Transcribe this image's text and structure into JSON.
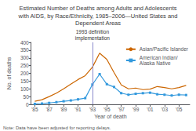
{
  "chart_data": {
    "type": "line",
    "title": "Estimated Number of Deaths among Adults and Adolescents\nwith AIDS, by Race/Ethnicity, 1985–2006—United States and\nDependent Areas",
    "xlabel": "Year of death",
    "ylabel": "No. of deaths",
    "x": [
      1985,
      1986,
      1987,
      1988,
      1989,
      1990,
      1991,
      1992,
      1993,
      1994,
      1995,
      1996,
      1997,
      1998,
      1999,
      2000,
      2001,
      2002,
      2003,
      2004,
      2005,
      2006
    ],
    "series": [
      {
        "name": "Asian/Pacific Islander",
        "color": "#cc6600",
        "marker": "none",
        "values": [
          20,
          30,
          50,
          72,
          100,
          130,
          160,
          185,
          240,
          330,
          290,
          205,
          125,
          100,
          105,
          95,
          98,
          115,
          108,
          100,
          108,
          122
        ]
      },
      {
        "name": "American Indian/\nAlaska Native",
        "color": "#3399dd",
        "marker": "square",
        "values": [
          3,
          5,
          9,
          14,
          20,
          25,
          32,
          40,
          128,
          195,
          130,
          112,
          72,
          62,
          68,
          72,
          75,
          65,
          62,
          57,
          62,
          60
        ]
      }
    ],
    "xlim": [
      1984.5,
      2006.5
    ],
    "xticks": [
      {
        "value": 1985,
        "label": "'85"
      },
      {
        "value": 1987,
        "label": "'87"
      },
      {
        "value": 1989,
        "label": "'89"
      },
      {
        "value": 1991,
        "label": "'91"
      },
      {
        "value": 1993,
        "label": "'93"
      },
      {
        "value": 1995,
        "label": "'95"
      },
      {
        "value": 1997,
        "label": "'97"
      },
      {
        "value": 1999,
        "label": "'99"
      },
      {
        "value": 2001,
        "label": "'01"
      },
      {
        "value": 2003,
        "label": "'03"
      },
      {
        "value": 2005,
        "label": "'05"
      }
    ],
    "ylim": [
      0,
      400
    ],
    "yticks": [
      0,
      50,
      100,
      150,
      200,
      250,
      300,
      350,
      400
    ],
    "annotations": [
      {
        "x": 1993,
        "text": "1993 definition\nimplementation",
        "color": "#8888cc"
      }
    ],
    "note": "Note: Data have been adjusted for reporting delays.",
    "legend": "upper right",
    "grid": false
  }
}
